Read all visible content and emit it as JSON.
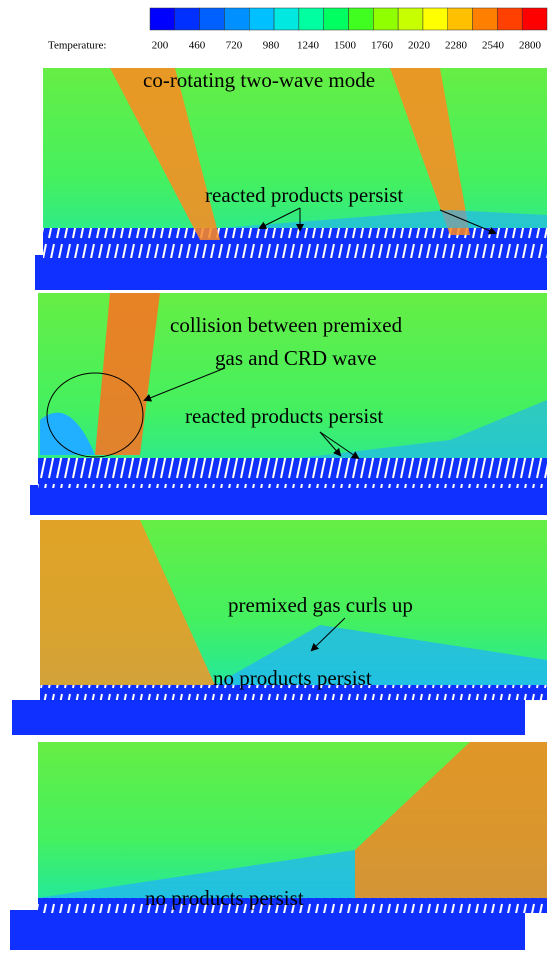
{
  "colorbar": {
    "label": "Temperature:",
    "ticks": [
      200,
      460,
      720,
      980,
      1240,
      1500,
      1760,
      2020,
      2280,
      2540,
      2800
    ],
    "colors": [
      "#0000ff",
      "#0030ff",
      "#0060ff",
      "#0090ff",
      "#00c0ff",
      "#00e8e0",
      "#00ffa0",
      "#00ff60",
      "#40ff20",
      "#90ff00",
      "#c8ff00",
      "#ffff00",
      "#ffc000",
      "#ff8000",
      "#ff4000",
      "#ff0000"
    ]
  },
  "panels": [
    {
      "annotations": [
        "co-rotating  two-wave mode",
        "reacted products persist"
      ]
    },
    {
      "annotations": [
        "collision between premixed",
        "gas and CRD wave",
        "reacted products persist"
      ]
    },
    {
      "annotations": [
        "premixed gas curls up",
        "no products persist"
      ]
    },
    {
      "annotations": [
        "no products persist"
      ]
    }
  ]
}
